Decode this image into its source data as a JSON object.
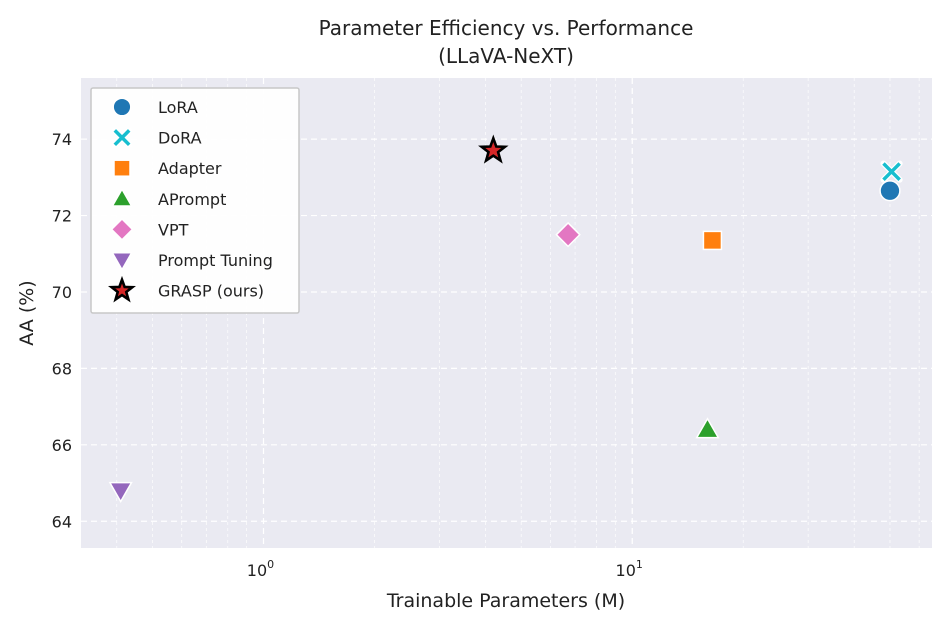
{
  "chart_data": {
    "type": "scatter",
    "title": "Parameter Efficiency vs. Performance",
    "subtitle": "(LLaVA-NeXT)",
    "xlabel": "Trainable Parameters (M)",
    "ylabel": "AA (%)",
    "x_scale": "log",
    "xlim": [
      0.32,
      65
    ],
    "ylim": [
      63.3,
      75.6
    ],
    "x_ticks": [
      {
        "value": 1,
        "base": "10",
        "exp": "0"
      },
      {
        "value": 10,
        "base": "10",
        "exp": "1"
      }
    ],
    "y_ticks": [
      {
        "value": 64,
        "label": "64"
      },
      {
        "value": 66,
        "label": "66"
      },
      {
        "value": 68,
        "label": "68"
      },
      {
        "value": 70,
        "label": "70"
      },
      {
        "value": 72,
        "label": "72"
      },
      {
        "value": 74,
        "label": "74"
      }
    ],
    "grid": true,
    "legend_position": "upper-left",
    "series": [
      {
        "name": "LoRA",
        "marker": "circle",
        "color": "#1f77b4",
        "x": 50.0,
        "y": 72.65
      },
      {
        "name": "DoRA",
        "marker": "x",
        "color": "#17becf",
        "x": 50.5,
        "y": 73.15
      },
      {
        "name": "Adapter",
        "marker": "square",
        "color": "#ff7f0e",
        "x": 16.5,
        "y": 71.35
      },
      {
        "name": "APrompt",
        "marker": "triangle-up",
        "color": "#2ca02c",
        "x": 16.0,
        "y": 66.4
      },
      {
        "name": "VPT",
        "marker": "diamond",
        "color": "#e377c2",
        "x": 6.7,
        "y": 71.5
      },
      {
        "name": "Prompt Tuning",
        "marker": "triangle-down",
        "color": "#9467bd",
        "x": 0.41,
        "y": 64.8
      },
      {
        "name": "GRASP (ours)",
        "marker": "star",
        "color": "#000000",
        "accent": "#d62728",
        "x": 4.2,
        "y": 73.7
      }
    ]
  }
}
